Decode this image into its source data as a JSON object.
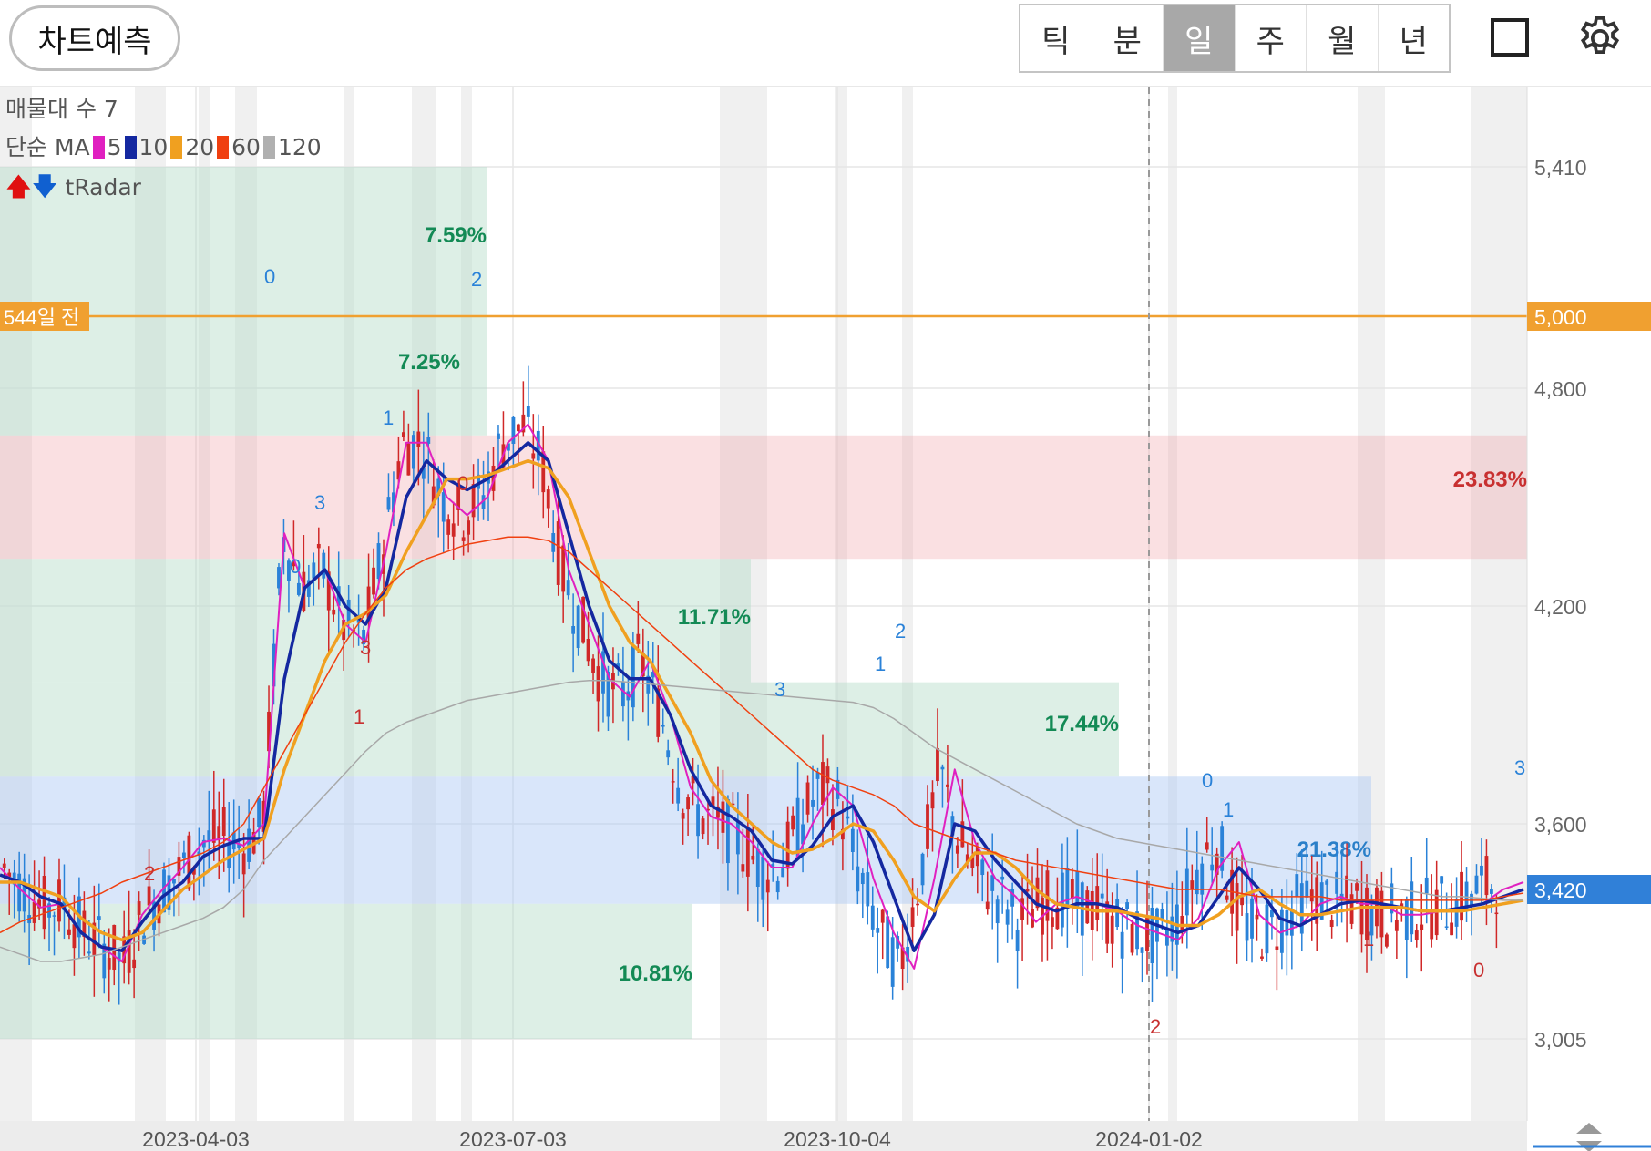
{
  "toolbar": {
    "predict_label": "차트예측",
    "periods": [
      "틱",
      "분",
      "일",
      "주",
      "월",
      "년"
    ],
    "active_period": "일",
    "icons": [
      "square-icon",
      "gear-icon"
    ]
  },
  "legend": {
    "volume_profile": "매물대 수 7",
    "ma_prefix": "단순 MA",
    "ma": [
      {
        "label": "5",
        "color": "#e020c0"
      },
      {
        "label": "10",
        "color": "#1428a0"
      },
      {
        "label": "20",
        "color": "#f0a020"
      },
      {
        "label": "60",
        "color": "#f04010"
      },
      {
        "label": "120",
        "color": "#b0b0b0"
      }
    ],
    "tradar": "tRadar"
  },
  "chart_data": {
    "type": "candlestick",
    "price_axis": {
      "ticks": [
        "5,410",
        "5,000",
        "4,800",
        "4,200",
        "3,600",
        "3,005"
      ],
      "tick_values": [
        5410,
        5000,
        4800,
        4200,
        3600,
        3005
      ],
      "current_price_label": "3,420",
      "current_price": 3420,
      "reference_price_label": "5,000",
      "reference_price": 5000,
      "ylim": [
        2850,
        5500
      ]
    },
    "date_axis": {
      "labels": [
        "2023-04-03",
        "2023-07-03",
        "2023-10-04",
        "2024-01-02"
      ]
    },
    "reference_line": {
      "label": "544일 전",
      "price": 5000
    },
    "zones": [
      {
        "low": 4330,
        "high": 4670,
        "color": "red",
        "pct": "23.83%"
      },
      {
        "low": 3380,
        "high": 3730,
        "color": "blue",
        "pct": "21.38%"
      },
      {
        "low": 4670,
        "high": 5410,
        "color": "green",
        "pct": "7.59%"
      },
      {
        "low": 4670,
        "high": 5000,
        "color": "green",
        "pct": "7.25%"
      },
      {
        "low": 3990,
        "high": 4330,
        "color": "green",
        "pct": "11.71%"
      },
      {
        "low": 3730,
        "high": 3990,
        "color": "green",
        "pct": "17.44%"
      },
      {
        "low": 3005,
        "high": 3380,
        "color": "green",
        "pct": "10.81%"
      }
    ],
    "signal_labels": [
      "0",
      "1",
      "2",
      "3"
    ],
    "ma_series": {
      "ma5": [
        3480,
        3420,
        3370,
        3380,
        3300,
        3260,
        3220,
        3350,
        3420,
        3480,
        3550,
        3560,
        3540,
        3600,
        4400,
        4250,
        4300,
        4150,
        4100,
        4350,
        4650,
        4650,
        4500,
        4450,
        4500,
        4650,
        4700,
        4600,
        4300,
        4150,
        4000,
        3950,
        4050,
        3900,
        3700,
        3620,
        3600,
        3550,
        3480,
        3480,
        3600,
        3700,
        3650,
        3450,
        3300,
        3200,
        3450,
        3750,
        3550,
        3450,
        3400,
        3330,
        3380,
        3400,
        3380,
        3360,
        3320,
        3300,
        3280,
        3340,
        3480,
        3550,
        3350,
        3300,
        3320,
        3380,
        3400,
        3380,
        3380,
        3350,
        3350,
        3360,
        3370,
        3380,
        3420,
        3440
      ],
      "ma10": [
        3460,
        3440,
        3400,
        3380,
        3300,
        3260,
        3250,
        3330,
        3400,
        3440,
        3510,
        3540,
        3560,
        3560,
        4000,
        4250,
        4300,
        4200,
        4150,
        4250,
        4500,
        4600,
        4550,
        4520,
        4550,
        4600,
        4650,
        4600,
        4400,
        4200,
        4050,
        4000,
        4000,
        3900,
        3750,
        3650,
        3620,
        3580,
        3500,
        3490,
        3540,
        3620,
        3650,
        3550,
        3400,
        3250,
        3350,
        3600,
        3580,
        3500,
        3440,
        3380,
        3360,
        3380,
        3380,
        3370,
        3340,
        3320,
        3300,
        3320,
        3400,
        3480,
        3420,
        3340,
        3320,
        3350,
        3380,
        3390,
        3380,
        3370,
        3360,
        3360,
        3370,
        3380,
        3400,
        3420
      ],
      "ma20": [
        3440,
        3440,
        3420,
        3400,
        3340,
        3300,
        3280,
        3300,
        3360,
        3420,
        3460,
        3500,
        3530,
        3560,
        3750,
        3900,
        4050,
        4150,
        4180,
        4230,
        4350,
        4450,
        4550,
        4550,
        4560,
        4580,
        4600,
        4580,
        4500,
        4350,
        4200,
        4100,
        4050,
        3950,
        3850,
        3720,
        3650,
        3600,
        3550,
        3520,
        3530,
        3560,
        3600,
        3580,
        3500,
        3400,
        3360,
        3450,
        3520,
        3520,
        3480,
        3420,
        3380,
        3370,
        3360,
        3360,
        3350,
        3340,
        3320,
        3320,
        3350,
        3400,
        3420,
        3380,
        3350,
        3350,
        3360,
        3370,
        3370,
        3370,
        3360,
        3360,
        3360,
        3370,
        3380,
        3390
      ],
      "ma60": [
        3300,
        3330,
        3350,
        3370,
        3390,
        3410,
        3440,
        3460,
        3480,
        3500,
        3520,
        3550,
        3600,
        3700,
        3800,
        3900,
        4000,
        4100,
        4180,
        4250,
        4300,
        4330,
        4350,
        4370,
        4380,
        4390,
        4390,
        4380,
        4350,
        4300,
        4250,
        4200,
        4150,
        4100,
        4050,
        4000,
        3950,
        3900,
        3850,
        3800,
        3750,
        3720,
        3700,
        3680,
        3650,
        3600,
        3580,
        3560,
        3540,
        3520,
        3500,
        3490,
        3480,
        3470,
        3460,
        3450,
        3440,
        3430,
        3420,
        3420,
        3420,
        3410,
        3400,
        3400,
        3400,
        3400,
        3390,
        3390,
        3390,
        3390,
        3390,
        3390,
        3390,
        3390,
        3400,
        3410
      ],
      "ma120": [
        3260,
        3240,
        3220,
        3220,
        3230,
        3240,
        3260,
        3280,
        3300,
        3320,
        3340,
        3370,
        3420,
        3500,
        3560,
        3620,
        3680,
        3740,
        3800,
        3850,
        3880,
        3900,
        3920,
        3940,
        3950,
        3960,
        3970,
        3980,
        3990,
        3995,
        3995,
        3990,
        3985,
        3980,
        3975,
        3970,
        3965,
        3960,
        3955,
        3950,
        3945,
        3940,
        3935,
        3920,
        3890,
        3850,
        3810,
        3780,
        3750,
        3720,
        3690,
        3660,
        3630,
        3600,
        3580,
        3560,
        3550,
        3540,
        3530,
        3520,
        3510,
        3500,
        3490,
        3480,
        3470,
        3460,
        3450,
        3440,
        3430,
        3420,
        3410,
        3400,
        3400,
        3395,
        3390,
        3390
      ]
    }
  }
}
